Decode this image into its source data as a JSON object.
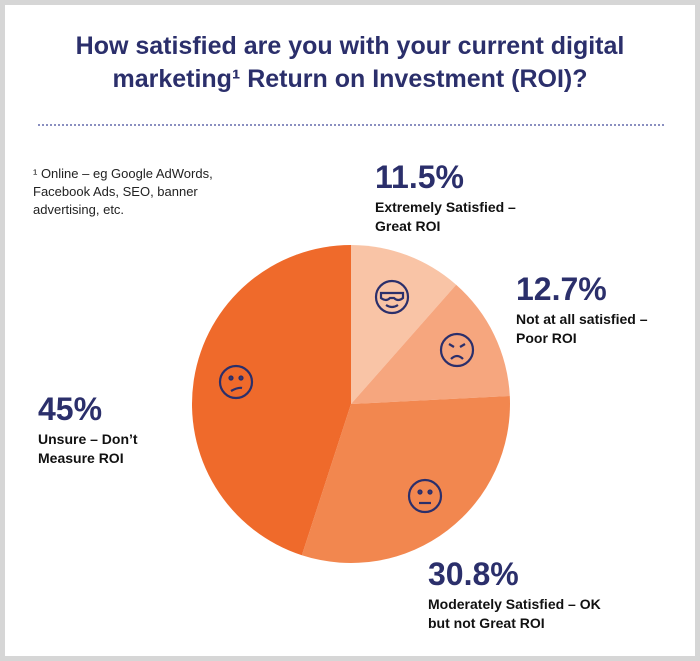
{
  "chart_data": {
    "type": "pie",
    "title": "How satisfied are you with your current digital marketing¹ Return on Investment (ROI)?",
    "footnote": "¹ Online – eg Google AdWords, Facebook Ads, SEO, banner advertising, etc.",
    "categories": [
      "Extremely Satisfied – Great ROI",
      "Not at all satisfied – Poor ROI",
      "Moderately Satisfied – OK but not Great ROI",
      "Unsure – Don’t Measure ROI"
    ],
    "values": [
      11.5,
      12.7,
      30.8,
      45
    ],
    "value_labels": [
      "11.5%",
      "12.7%",
      "30.8%",
      "45%"
    ],
    "colors": [
      "#f9c4a6",
      "#f6a67e",
      "#f2874f",
      "#ef6a2b"
    ]
  }
}
